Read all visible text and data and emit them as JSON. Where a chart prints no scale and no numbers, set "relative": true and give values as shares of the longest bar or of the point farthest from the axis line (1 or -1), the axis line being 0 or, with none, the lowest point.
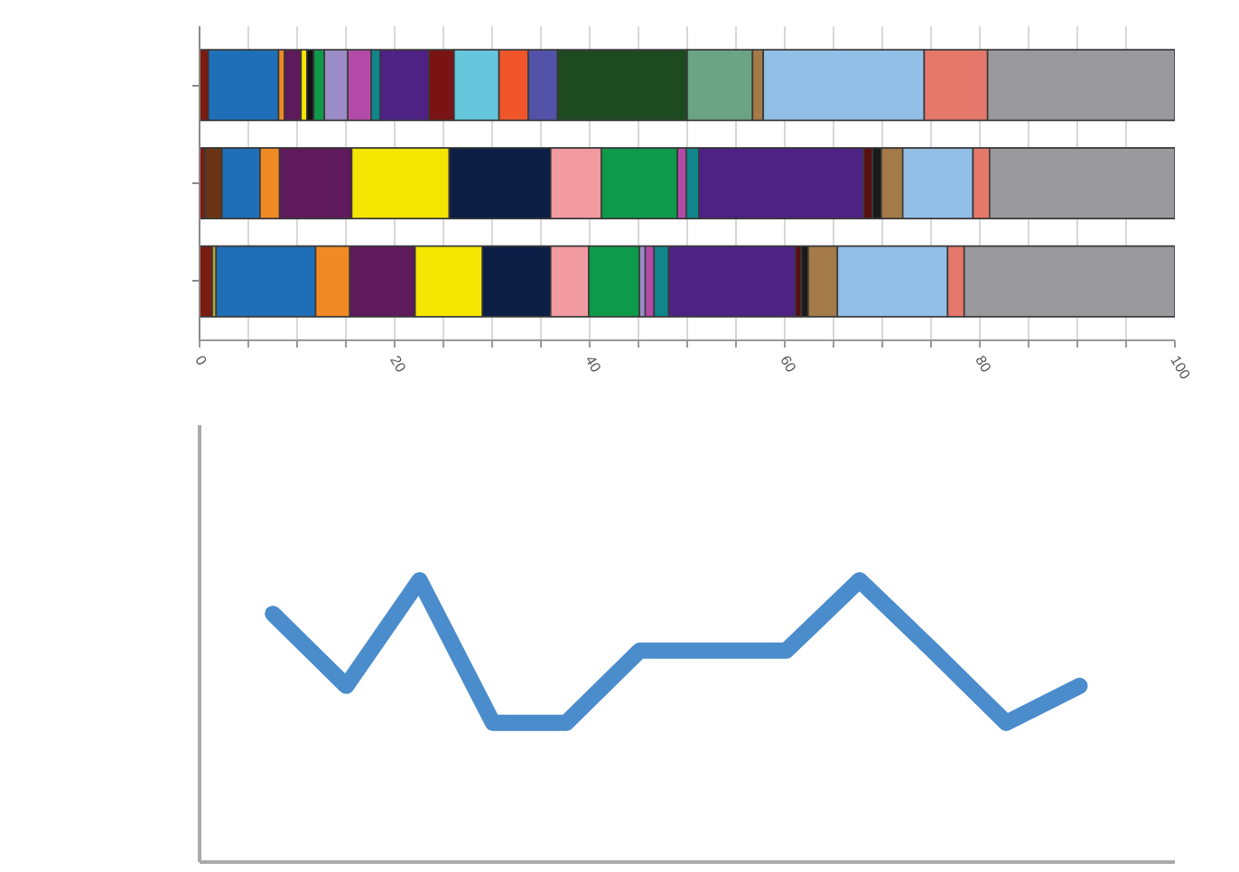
{
  "chart_data": [
    {
      "type": "bar",
      "orientation": "horizontal",
      "stacked": true,
      "categories": [
        null,
        null,
        null
      ],
      "xlim": [
        0,
        100
      ],
      "xticks": [
        0,
        {
          "value": 5,
          "label": null
        },
        {
          "value": 10,
          "label": null
        },
        {
          "value": 15,
          "label": null
        },
        20,
        {
          "value": 25,
          "label": null
        },
        {
          "value": 30,
          "label": null
        },
        {
          "value": 35,
          "label": null
        },
        40,
        {
          "value": 45,
          "label": null
        },
        {
          "value": 50,
          "label": null
        },
        {
          "value": 55,
          "label": null
        },
        60,
        {
          "value": 65,
          "label": null
        },
        {
          "value": 70,
          "label": null
        },
        {
          "value": 75,
          "label": null
        },
        80,
        {
          "value": 85,
          "label": null
        },
        {
          "value": 90,
          "label": null
        },
        {
          "value": 95,
          "label": null
        },
        100
      ],
      "grid": "x",
      "series": [
        {
          "color": "#7a1c12",
          "values": [
            0.9,
            0.6,
            1.3
          ]
        },
        {
          "color": "#6b3414",
          "values": [
            null,
            1.7,
            null
          ]
        },
        {
          "color": "#b8a838",
          "values": [
            null,
            null,
            0.4
          ]
        },
        {
          "color": "#1f6fb8",
          "values": [
            7.2,
            3.9,
            10.2
          ]
        },
        {
          "color": "#f08a24",
          "values": [
            0.6,
            2,
            3.5
          ]
        },
        {
          "color": "#5e1a5a",
          "values": [
            1.7,
            7.4,
            6.7
          ]
        },
        {
          "color": "#f4e600",
          "values": [
            0.6,
            10,
            6.9
          ]
        },
        {
          "color": "#111111",
          "values": [
            0.7,
            null,
            null
          ]
        },
        {
          "color": "#0c1e44",
          "values": [
            null,
            10.4,
            7
          ]
        },
        {
          "color": "#f19aa0",
          "values": [
            null,
            5.2,
            3.9
          ]
        },
        {
          "color": "#0e9a4a",
          "values": [
            1.1,
            7.8,
            5.2
          ]
        },
        {
          "color": "#9b8cc8",
          "values": [
            2.4,
            null,
            0.6
          ]
        },
        {
          "color": "#b44aa8",
          "values": [
            2.4,
            0.9,
            0.9
          ]
        },
        {
          "color": "#10858a",
          "values": [
            0.9,
            1.3,
            1.5
          ]
        },
        {
          "color": "#4d2284",
          "values": [
            5,
            16.9,
            13
          ]
        },
        {
          "color": "#7a1414",
          "values": [
            2.6,
            null,
            null
          ]
        },
        {
          "color": "#66c6dc",
          "values": [
            4.6,
            null,
            null
          ]
        },
        {
          "color": "#f0562a",
          "values": [
            3,
            null,
            null
          ]
        },
        {
          "color": "#5252a8",
          "values": [
            3,
            null,
            null
          ]
        },
        {
          "color": "#1e4a22",
          "values": [
            13.3,
            null,
            null
          ]
        },
        {
          "color": "#6aa484",
          "values": [
            6.7,
            null,
            null
          ]
        },
        {
          "color": "#5a0e10",
          "values": [
            null,
            0.9,
            0.6
          ]
        },
        {
          "color": "#1a1a1a",
          "values": [
            null,
            0.9,
            0.7
          ]
        },
        {
          "color": "#a47a48",
          "values": [
            1.1,
            2.2,
            3
          ]
        },
        {
          "color": "#92bfe6",
          "values": [
            16.5,
            7.2,
            11.3
          ]
        },
        {
          "color": "#e4786a",
          "values": [
            6.5,
            1.7,
            1.7
          ]
        },
        {
          "color": "#9a9a9e",
          "values": [
            19.2,
            19,
            21.6
          ]
        }
      ]
    },
    {
      "type": "line",
      "relative": true,
      "categories": [
        null,
        null,
        null,
        null,
        null,
        null,
        null,
        null,
        null,
        null,
        null,
        null
      ],
      "series": [
        {
          "color": "#4a8ccc",
          "values": [
            0.881,
            0.625,
            1,
            0.494,
            0.494,
            0.75,
            0.75,
            0.75,
            1,
            0.75,
            0.494,
            0.625
          ]
        }
      ]
    }
  ]
}
